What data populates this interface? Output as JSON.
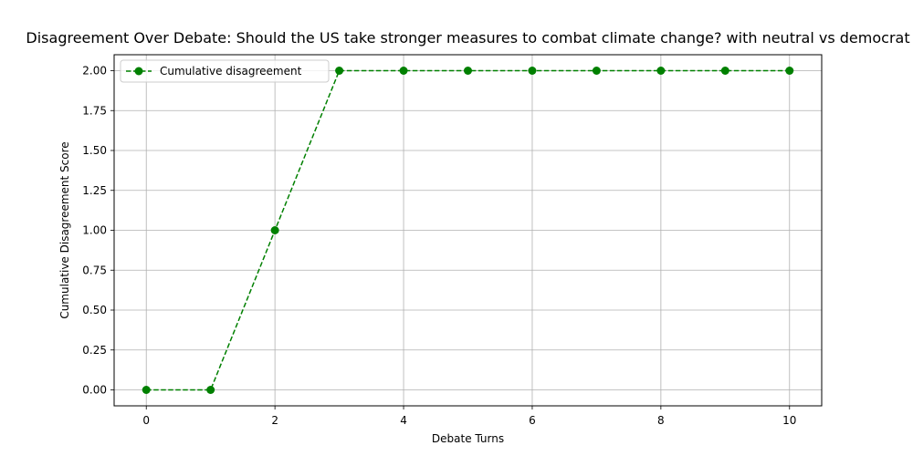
{
  "chart_data": {
    "type": "line",
    "title": "Disagreement Over Debate: Should the US take stronger measures to combat climate change? with neutral vs democrat",
    "xlabel": "Debate Turns",
    "ylabel": "Cumulative Disagreement Score",
    "xlim": [
      -0.5,
      10.5
    ],
    "ylim": [
      -0.1,
      2.1
    ],
    "xticks": [
      0,
      2,
      4,
      6,
      8,
      10
    ],
    "xtick_labels": [
      "0",
      "2",
      "4",
      "6",
      "8",
      "10"
    ],
    "yticks": [
      0,
      0.25,
      0.5,
      0.75,
      1.0,
      1.25,
      1.5,
      1.75,
      2.0
    ],
    "ytick_labels": [
      "0.00",
      "0.25",
      "0.50",
      "0.75",
      "1.00",
      "1.25",
      "1.50",
      "1.75",
      "2.00"
    ],
    "grid": true,
    "legend_position": "top-left",
    "series": [
      {
        "name": "Cumulative disagreement",
        "color": "#008000",
        "line_style": "dashed",
        "marker": "circle",
        "x": [
          0,
          1,
          2,
          3,
          4,
          5,
          6,
          7,
          8,
          9,
          10
        ],
        "y": [
          0,
          0,
          1,
          2,
          2,
          2,
          2,
          2,
          2,
          2,
          2
        ]
      }
    ]
  }
}
